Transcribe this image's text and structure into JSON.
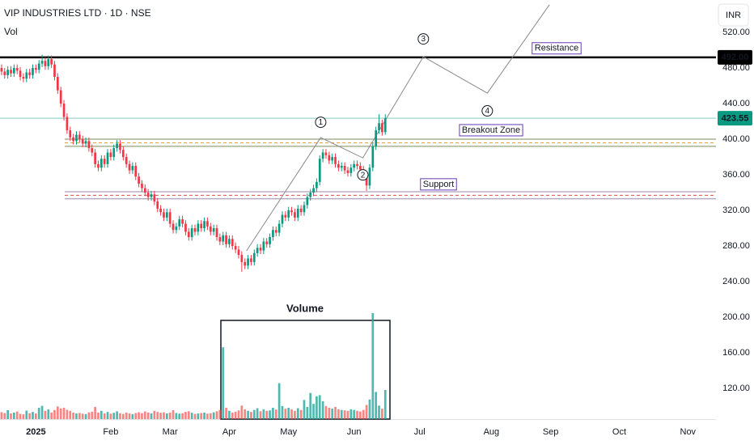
{
  "chart_data": {
    "type": "candlestick",
    "title": "VIP INDUSTRIES LTD · 1D · NSE",
    "subtitle": "Vol",
    "currency": "INR",
    "up_color": "#089981",
    "down_color": "#f23645",
    "vol_up_color": "#26a69a",
    "vol_down_color": "#ef5350",
    "open": [
      480,
      476,
      472,
      478,
      474,
      480,
      477,
      470,
      468,
      475,
      472,
      480,
      478,
      485,
      488,
      482,
      490,
      484,
      470,
      455,
      440,
      425,
      410,
      402,
      398,
      405,
      400,
      395,
      398,
      390,
      385,
      372,
      368,
      378,
      372,
      385,
      380,
      390,
      395,
      388,
      380,
      372,
      365,
      370,
      358,
      350,
      345,
      340,
      335,
      338,
      330,
      322,
      318,
      312,
      318,
      305,
      298,
      302,
      310,
      305,
      296,
      290,
      300,
      296,
      305,
      300,
      308,
      302,
      296,
      300,
      290,
      285,
      292,
      282,
      288,
      280,
      276,
      270,
      262,
      258,
      266,
      262,
      272,
      278,
      275,
      285,
      282,
      290,
      298,
      295,
      305,
      315,
      312,
      320,
      318,
      312,
      322,
      318,
      326,
      335,
      340,
      345,
      352,
      378,
      385,
      382,
      376,
      380,
      372,
      368,
      370,
      365,
      362,
      368,
      372,
      370,
      366,
      358,
      348,
      368,
      392,
      410,
      418,
      408
    ],
    "high": [
      484,
      480,
      482,
      482,
      484,
      484,
      481,
      474,
      479,
      479,
      484,
      484,
      489,
      495,
      492,
      494,
      494,
      488,
      474,
      459,
      444,
      429,
      414,
      406,
      409,
      409,
      404,
      402,
      402,
      394,
      389,
      376,
      382,
      382,
      389,
      389,
      394,
      399,
      399,
      392,
      384,
      376,
      374,
      374,
      362,
      354,
      349,
      344,
      342,
      342,
      334,
      326,
      322,
      322,
      322,
      309,
      306,
      314,
      314,
      309,
      300,
      304,
      304,
      309,
      309,
      312,
      312,
      306,
      304,
      304,
      294,
      296,
      296,
      292,
      292,
      284,
      280,
      274,
      266,
      270,
      270,
      276,
      282,
      282,
      289,
      289,
      294,
      302,
      302,
      309,
      319,
      319,
      324,
      324,
      322,
      326,
      326,
      330,
      339,
      344,
      349,
      356,
      382,
      389,
      389,
      386,
      384,
      384,
      376,
      374,
      374,
      369,
      372,
      376,
      376,
      374,
      370,
      362,
      372,
      396,
      414,
      428,
      422,
      428
    ],
    "low": [
      472,
      468,
      468,
      470,
      470,
      473,
      466,
      464,
      464,
      468,
      468,
      474,
      474,
      481,
      478,
      478,
      480,
      466,
      451,
      436,
      421,
      406,
      398,
      394,
      394,
      396,
      391,
      391,
      386,
      381,
      368,
      364,
      364,
      368,
      368,
      376,
      376,
      386,
      384,
      376,
      368,
      361,
      361,
      354,
      346,
      341,
      336,
      331,
      331,
      326,
      318,
      314,
      308,
      308,
      301,
      294,
      294,
      298,
      301,
      292,
      286,
      286,
      292,
      292,
      296,
      296,
      298,
      292,
      292,
      286,
      281,
      281,
      278,
      278,
      276,
      272,
      266,
      251,
      254,
      254,
      258,
      258,
      268,
      271,
      271,
      278,
      278,
      286,
      291,
      291,
      301,
      308,
      308,
      314,
      308,
      308,
      314,
      314,
      322,
      331,
      336,
      341,
      348,
      374,
      378,
      372,
      372,
      368,
      364,
      364,
      361,
      358,
      358,
      364,
      366,
      362,
      354,
      342,
      344,
      364,
      388,
      406,
      404,
      405
    ],
    "close": [
      476,
      472,
      478,
      474,
      480,
      477,
      470,
      468,
      475,
      472,
      480,
      478,
      485,
      488,
      482,
      490,
      484,
      470,
      455,
      440,
      425,
      410,
      402,
      398,
      405,
      400,
      395,
      398,
      390,
      385,
      372,
      368,
      378,
      372,
      385,
      380,
      390,
      395,
      388,
      380,
      372,
      365,
      370,
      358,
      350,
      345,
      340,
      335,
      338,
      330,
      322,
      318,
      312,
      318,
      305,
      298,
      302,
      310,
      305,
      296,
      290,
      300,
      296,
      305,
      300,
      308,
      302,
      296,
      300,
      290,
      285,
      292,
      282,
      288,
      280,
      276,
      270,
      262,
      258,
      266,
      262,
      272,
      278,
      275,
      285,
      282,
      290,
      298,
      295,
      305,
      315,
      312,
      320,
      318,
      312,
      322,
      318,
      326,
      335,
      340,
      345,
      352,
      378,
      385,
      382,
      376,
      380,
      372,
      368,
      370,
      365,
      362,
      368,
      372,
      370,
      366,
      358,
      348,
      368,
      392,
      410,
      418,
      408,
      423.55
    ],
    "volume": [
      320000,
      280000,
      410000,
      260000,
      300000,
      350000,
      240000,
      220000,
      390000,
      270000,
      330000,
      260000,
      520000,
      610000,
      380000,
      450000,
      300000,
      420000,
      580000,
      490000,
      520000,
      430000,
      380000,
      300000,
      260000,
      280000,
      250000,
      230000,
      310000,
      340000,
      560000,
      300000,
      380000,
      260000,
      330000,
      250000,
      290000,
      360000,
      270000,
      240000,
      300000,
      260000,
      230000,
      280000,
      310000,
      270000,
      350000,
      300000,
      260000,
      380000,
      330000,
      290000,
      310000,
      260000,
      300000,
      410000,
      280000,
      250000,
      270000,
      330000,
      360000,
      290000,
      240000,
      260000,
      280000,
      300000,
      250000,
      270000,
      310000,
      360000,
      420000,
      3300000,
      520000,
      380000,
      300000,
      340000,
      400000,
      620000,
      450000,
      380000,
      330000,
      420000,
      500000,
      360000,
      450000,
      380000,
      400000,
      520000,
      440000,
      1650000,
      600000,
      480000,
      520000,
      450000,
      380000,
      500000,
      420000,
      880000,
      560000,
      1200000,
      700000,
      1050000,
      1100000,
      820000,
      600000,
      520000,
      480000,
      560000,
      450000,
      420000,
      400000,
      380000,
      450000,
      420000,
      380000,
      350000,
      420000,
      650000,
      900000,
      4870000,
      1250000,
      620000,
      480000,
      1340000
    ],
    "xlim": [
      -0.5,
      229
    ],
    "xticks": [
      {
        "value": 11,
        "label": "2025"
      },
      {
        "value": 35,
        "label": "Feb"
      },
      {
        "value": 54,
        "label": "Mar"
      },
      {
        "value": 73,
        "label": "Apr"
      },
      {
        "value": 92,
        "label": "May"
      },
      {
        "value": 113,
        "label": "Jun"
      },
      {
        "value": 134,
        "label": "Jul"
      },
      {
        "value": 157,
        "label": "Aug"
      },
      {
        "value": 176,
        "label": "Sep"
      },
      {
        "value": 198,
        "label": "Oct"
      },
      {
        "value": 220,
        "label": "Nov"
      }
    ],
    "ylim": [
      85.5,
      556.4
    ],
    "yticks": [
      {
        "value": 120,
        "label": "120.00"
      },
      {
        "value": 160,
        "label": "160.00"
      },
      {
        "value": 200,
        "label": "200.00"
      },
      {
        "value": 240,
        "label": "240.00"
      },
      {
        "value": 280,
        "label": "280.00"
      },
      {
        "value": 320,
        "label": "320.00"
      },
      {
        "value": 360,
        "label": "360.00"
      },
      {
        "value": 400,
        "label": "400.00"
      },
      {
        "value": 440,
        "label": "440.00"
      },
      {
        "value": 480,
        "label": "480.00"
      },
      {
        "value": 520,
        "label": "520.00"
      }
    ],
    "y2lim": [
      0,
      5500000
    ],
    "grid": false,
    "annotations": {
      "resistance": {
        "level": {
          "value": 492,
          "label": "492.00"
        },
        "text": "Resistance"
      },
      "breakout_zone": {
        "range": [
          392,
          400
        ],
        "text": "Breakout Zone"
      },
      "support": {
        "range": [
          333,
          341
        ],
        "text": "Support"
      },
      "wave": {
        "x": [
          78.5,
          102.3,
          115.8,
          135.2,
          155.7,
          175.6
        ],
        "y": [
          274.5,
          401.8,
          379,
          492.7,
          451.8,
          551
        ]
      },
      "wave_labels": [
        "1",
        "2",
        "3",
        "4"
      ],
      "volume_box": {
        "text": "Volume"
      }
    }
  }
}
